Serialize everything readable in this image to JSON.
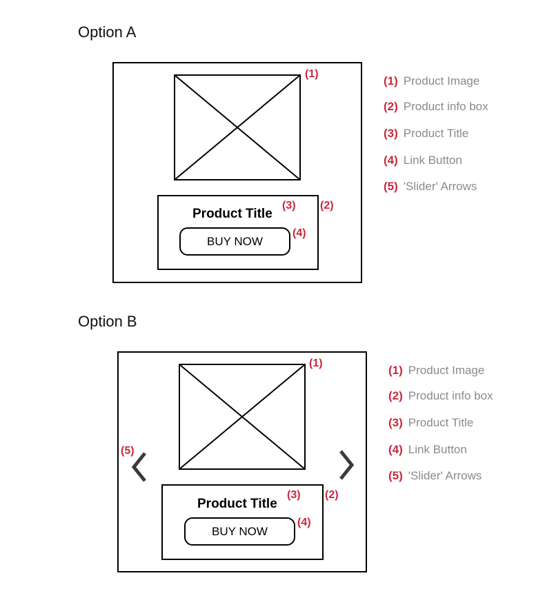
{
  "colors": {
    "marker": "#c8283a",
    "legend_label": "#8a8a8a",
    "outline": "#000000",
    "arrow": "#3a3a3a"
  },
  "option_a": {
    "title": "Option A",
    "product_title": "Product Title",
    "button_label": "BUY NOW",
    "markers": {
      "image": "(1)",
      "info_box": "(2)",
      "title": "(3)",
      "button": "(4)"
    },
    "legend": [
      {
        "num": "(1)",
        "label": "Product Image"
      },
      {
        "num": "(2)",
        "label": "Product info box"
      },
      {
        "num": "(3)",
        "label": "Product Title"
      },
      {
        "num": "(4)",
        "label": "Link Button"
      },
      {
        "num": "(5)",
        "label": "'Slider' Arrows"
      }
    ]
  },
  "option_b": {
    "title": "Option B",
    "product_title": "Product Title",
    "button_label": "BUY NOW",
    "markers": {
      "image": "(1)",
      "info_box": "(2)",
      "title": "(3)",
      "button": "(4)",
      "arrows": "(5)"
    },
    "arrow_icons": [
      "chevron-left-icon",
      "chevron-right-icon"
    ],
    "legend": [
      {
        "num": "(1)",
        "label": "Product Image"
      },
      {
        "num": "(2)",
        "label": "Product info box"
      },
      {
        "num": "(3)",
        "label": "Product Title"
      },
      {
        "num": "(4)",
        "label": "Link Button"
      },
      {
        "num": "(5)",
        "label": "'Slider' Arrows"
      }
    ]
  }
}
